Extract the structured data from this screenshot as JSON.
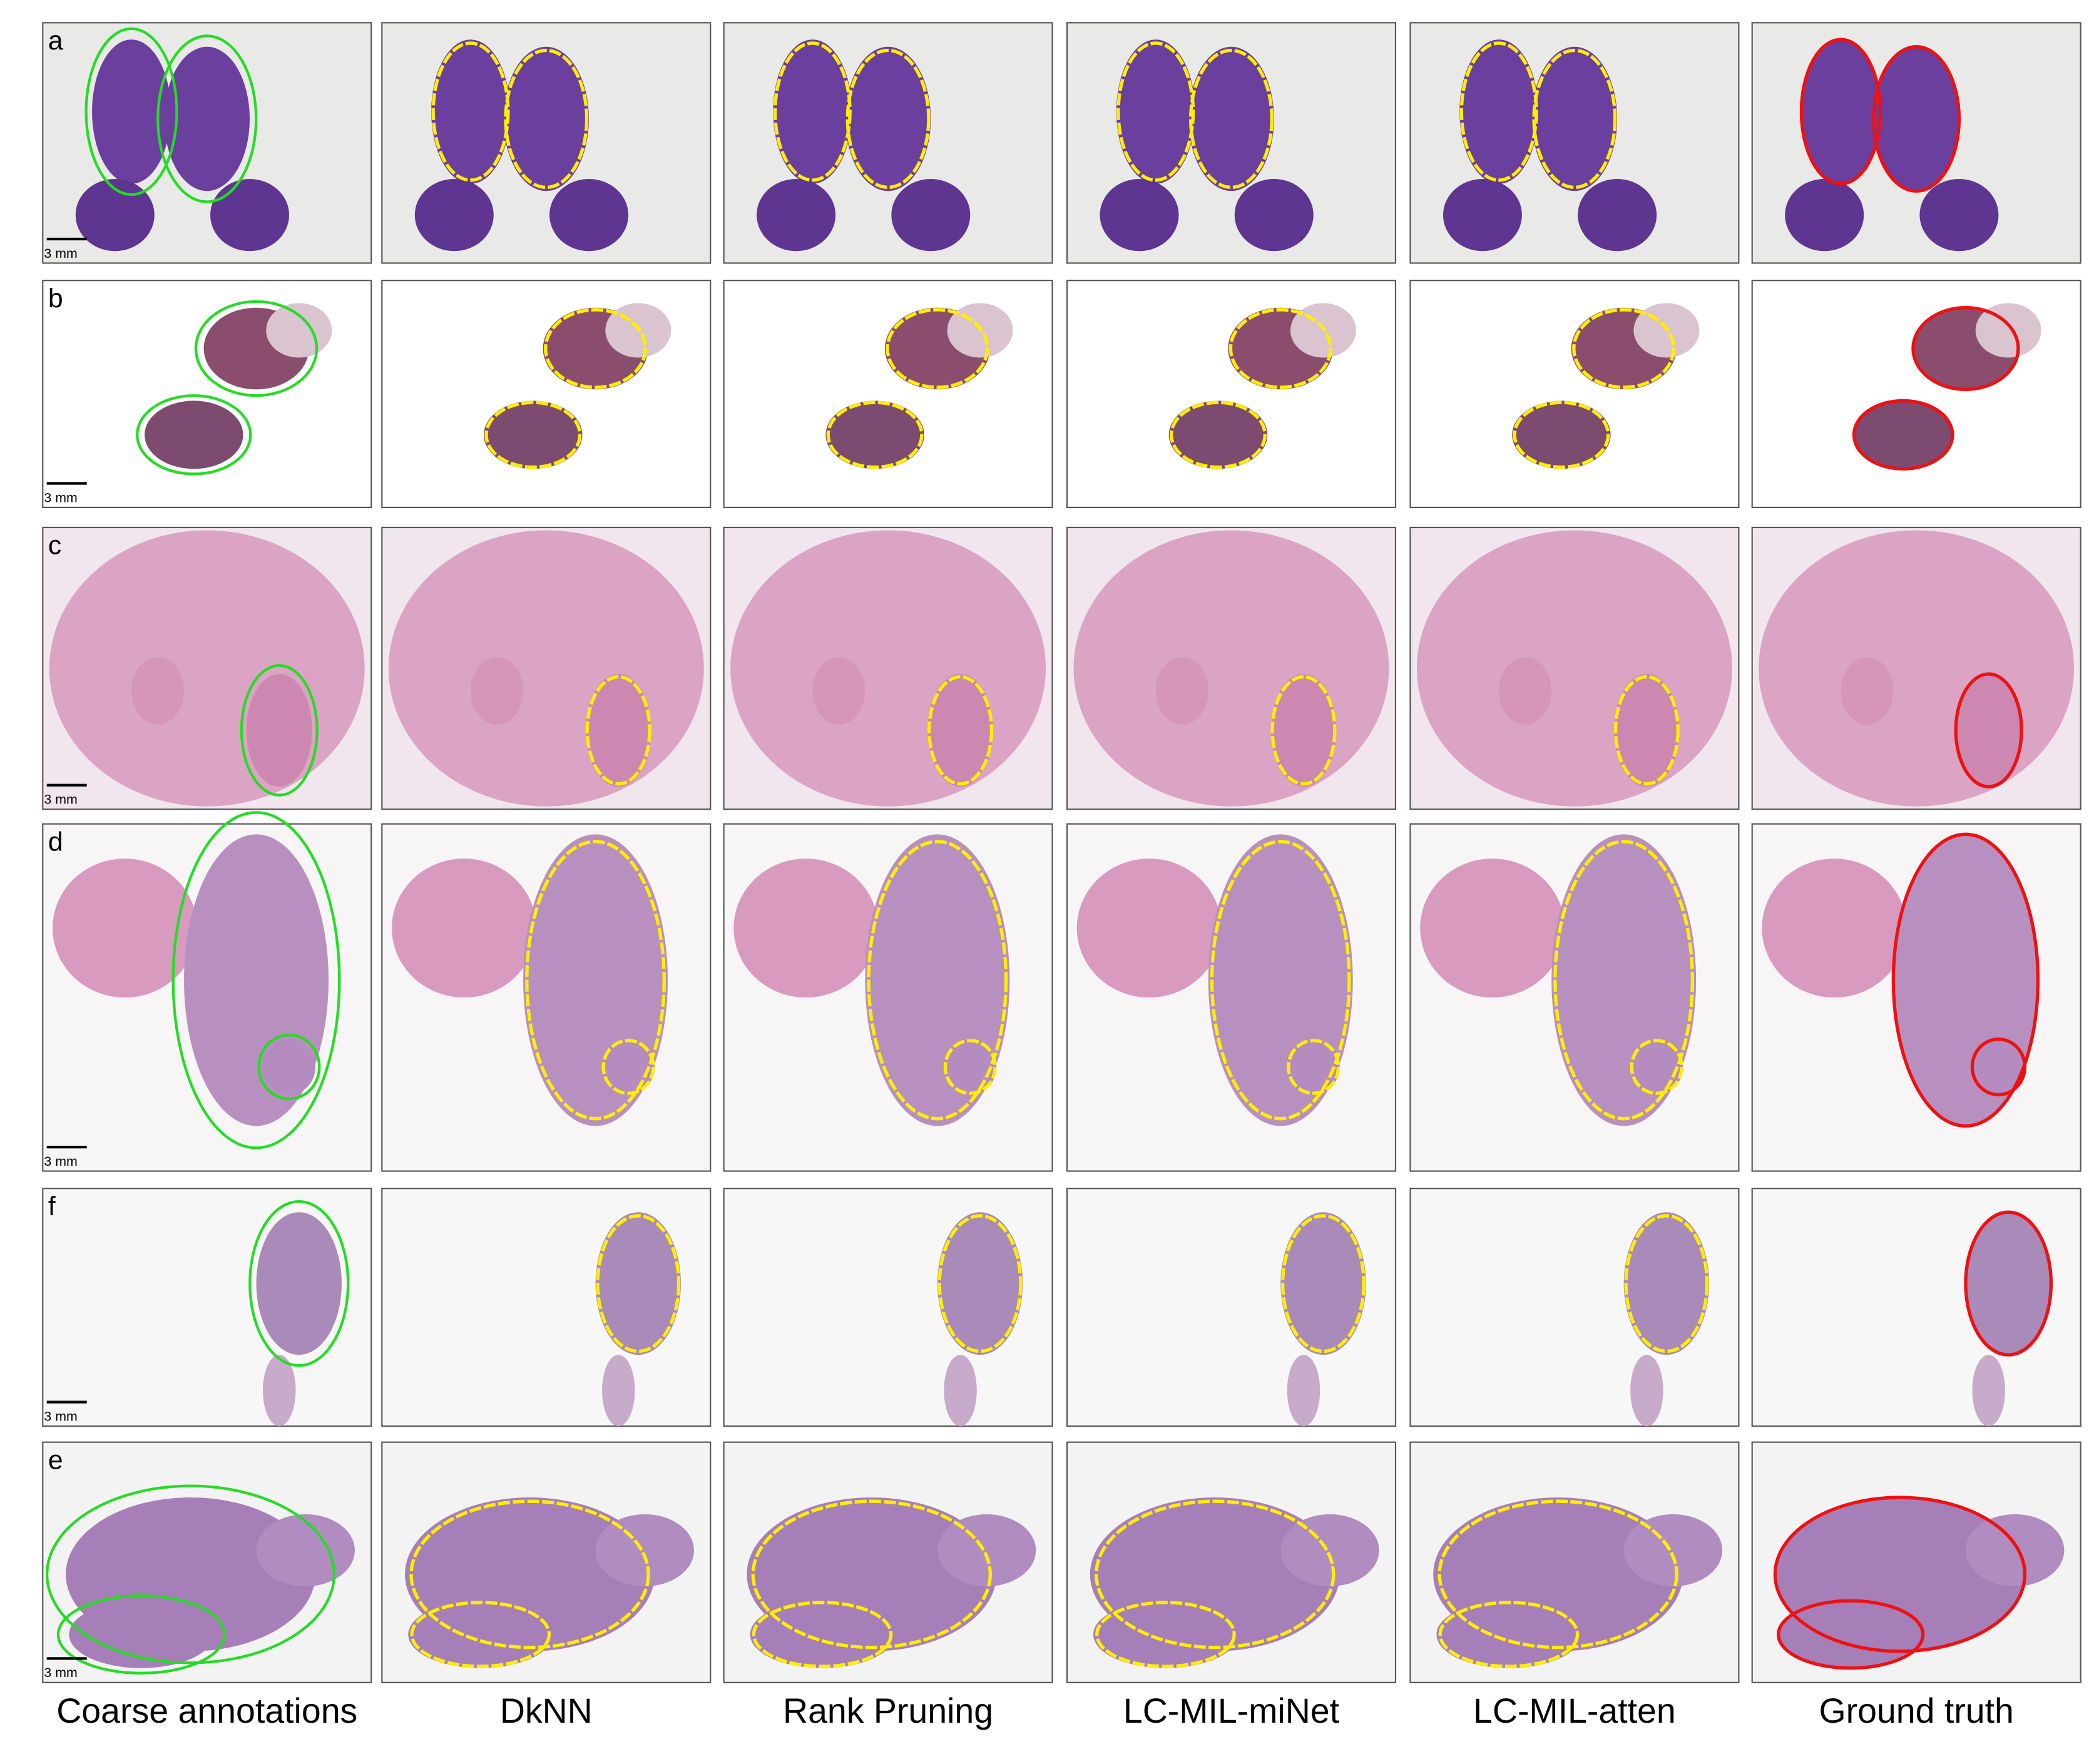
{
  "rows": [
    {
      "label": "a",
      "scale_label": "3 mm"
    },
    {
      "label": "b",
      "scale_label": "3 mm"
    },
    {
      "label": "c",
      "scale_label": "3 mm"
    },
    {
      "label": "d",
      "scale_label": "3 mm"
    },
    {
      "label": "f",
      "scale_label": "3 mm"
    },
    {
      "label": "e",
      "scale_label": "3 mm"
    }
  ],
  "columns": [
    "Coarse annotations",
    "DkNN",
    "Rank Pruning",
    "LC-MIL-miNet",
    "LC-MIL-atten",
    "Ground truth"
  ]
}
